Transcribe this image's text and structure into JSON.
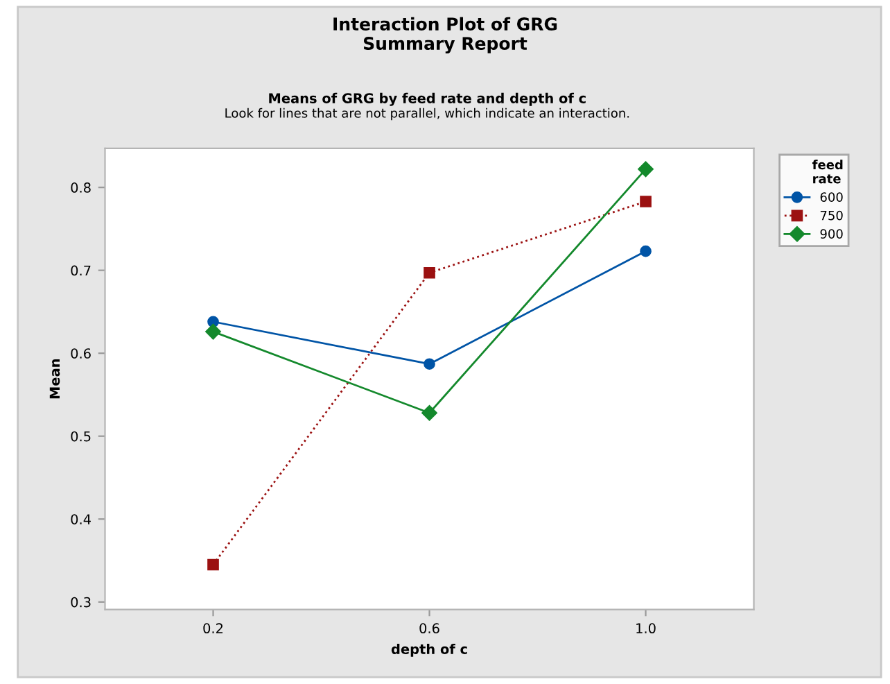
{
  "chart_data": {
    "type": "line",
    "title": "Interaction Plot of GRG\nSummary Report",
    "subtitle": "Means of GRG by feed rate and depth of c",
    "annotations": [
      "Look for lines that are not parallel, which indicate an interaction."
    ],
    "xlabel": "depth of c",
    "ylabel": "Mean",
    "legend_title": "feed\nrate",
    "categories": [
      "0.2",
      "0.6",
      "1.0"
    ],
    "series": [
      {
        "name": "600",
        "color": "#0054a6",
        "values": [
          0.638,
          0.587,
          0.723
        ],
        "marker": "circle",
        "line_style": "solid"
      },
      {
        "name": "750",
        "color": "#9b1111",
        "values": [
          0.345,
          0.697,
          0.783
        ],
        "marker": "square",
        "line_style": "dotted"
      },
      {
        "name": "900",
        "color": "#14892c",
        "values": [
          0.626,
          0.528,
          0.822
        ],
        "marker": "diamond",
        "line_style": "solid"
      }
    ],
    "ylim": [
      0.291,
      0.847
    ],
    "yticks": [
      0.3,
      0.4,
      0.5,
      0.6,
      0.7,
      0.8
    ],
    "grid": false,
    "legend": "top right"
  }
}
